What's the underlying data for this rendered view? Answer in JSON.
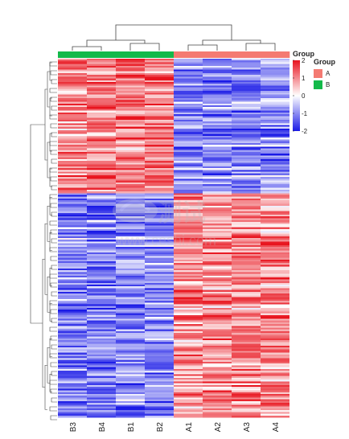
{
  "chart_data": {
    "type": "heatmap",
    "columns": [
      "B3",
      "B4",
      "B1",
      "B2",
      "A1",
      "A2",
      "A3",
      "A4"
    ],
    "column_groups": [
      "B",
      "B",
      "B",
      "B",
      "A",
      "A",
      "A",
      "A"
    ],
    "group_order": [
      "B",
      "A"
    ],
    "group_split_column": 4,
    "value_range": [
      -2,
      2
    ],
    "colorbar": {
      "title": "Group",
      "ticks": [
        "2",
        "1",
        "0",
        "-1",
        "-2"
      ],
      "tick_values": [
        2,
        1,
        0,
        -1,
        -2
      ],
      "colors": {
        "low": "#1a1ae6",
        "mid": "#ffffff",
        "high": "#e8141e"
      }
    },
    "legend": {
      "title": "Group",
      "placement": "right",
      "entries": [
        {
          "label": "A",
          "color": "#f47a72"
        },
        {
          "label": "B",
          "color": "#13b94a"
        }
      ]
    },
    "row_count": 200,
    "row_clusters": [
      {
        "rows": 75,
        "B_mean": 1.0,
        "A_mean": -1.1,
        "sign": "B high / A low"
      },
      {
        "rows": 125,
        "B_mean": -1.0,
        "A_mean": 1.0,
        "sign": "B low / A high"
      }
    ],
    "row_dendrogram": "shown (left)",
    "column_dendrogram": "shown (top)"
  },
  "watermark": {
    "logo": "测试",
    "url": "www.ceshi.com"
  }
}
